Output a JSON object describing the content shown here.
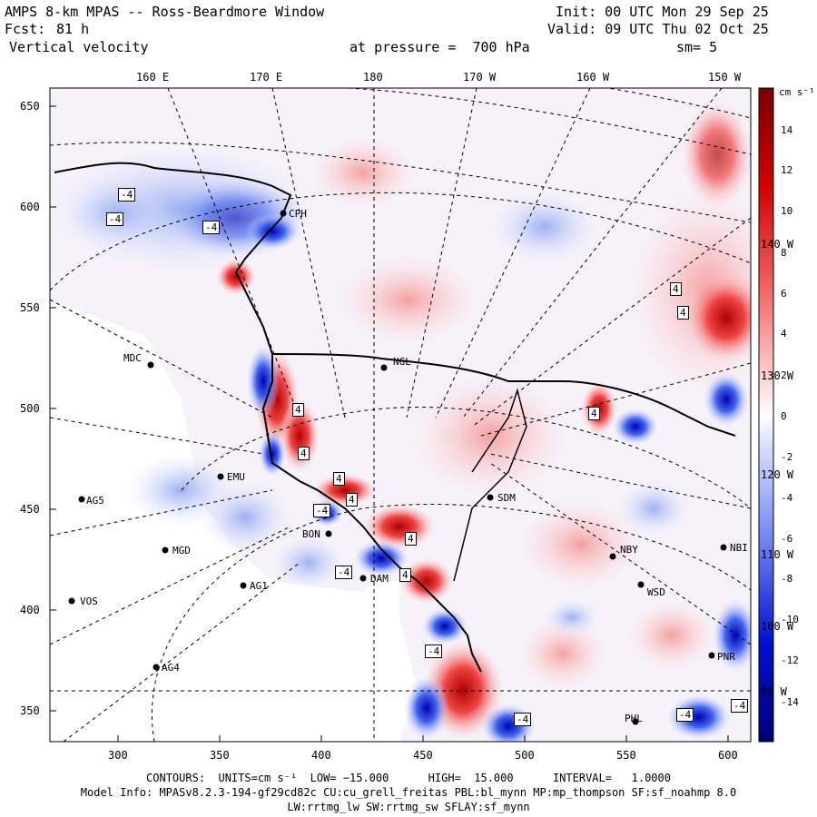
{
  "header": {
    "title": "AMPS 8-km MPAS -- Ross-Beardmore Window",
    "fcst_label": "Fcst:",
    "fcst_value": "81 h",
    "variable": "Vertical velocity",
    "init": "Init: 00 UTC Mon 29 Sep 25",
    "valid": "Valid: 09 UTC Thu 02 Oct 25",
    "pressure": "at pressure =  700 hPa",
    "smoothing": "sm= 5"
  },
  "top_longitude_labels": [
    "160 E",
    "170 E",
    "180",
    "170 W",
    "160 W",
    "150 W"
  ],
  "right_longitude_labels": [
    "140 W",
    "130 W",
    "120 W",
    "110 W",
    "100 W",
    "90 W"
  ],
  "y_axis_labels": [
    "650",
    "600",
    "550",
    "500",
    "450",
    "400",
    "350"
  ],
  "x_axis_labels": [
    "300",
    "350",
    "400",
    "450",
    "500",
    "550",
    "600"
  ],
  "colorbar": {
    "units": "cm s⁻¹",
    "tick_labels": [
      "14",
      "12",
      "10",
      "8",
      "6",
      "4",
      "2",
      "0",
      "-2",
      "-4",
      "-6",
      "-8",
      "-10",
      "-12",
      "-14"
    ],
    "low_color": "#00007a",
    "mid_color": "#ffffff",
    "high_color": "#7a0000"
  },
  "stations": [
    {
      "name": "CPH"
    },
    {
      "name": "NGL"
    },
    {
      "name": "MDC"
    },
    {
      "name": "EMU"
    },
    {
      "name": "AG5"
    },
    {
      "name": "MGD"
    },
    {
      "name": "AG1"
    },
    {
      "name": "VOS"
    },
    {
      "name": "AG4"
    },
    {
      "name": "SDM"
    },
    {
      "name": "NBY"
    },
    {
      "name": "WSD"
    },
    {
      "name": "PNR"
    },
    {
      "name": "PHL"
    },
    {
      "name": "NBI"
    },
    {
      "name": "BON"
    },
    {
      "name": "DAM"
    }
  ],
  "contour_labels": [
    "-4",
    "-4",
    "-4",
    "4",
    "4",
    "4",
    "4",
    "4",
    "-4",
    "4",
    "-4",
    "-4",
    "-4",
    "4",
    "4",
    "-4",
    "4",
    "-4"
  ],
  "footer": {
    "contours": "CONTOURS:  UNITS=cm s⁻¹  LOW= −15.000      HIGH=  15.000      INTERVAL=   1.0000",
    "model_info": "Model Info: MPASv8.2.3-194-gf29cd82c CU:cu_grell_freitas PBL:bl_mynn MP:mp_thompson SF:sf_noahmp 8.0",
    "model_info2": "LW:rrtmg_lw SW:rrtmg_sw SFLAY:sf_mynn"
  }
}
